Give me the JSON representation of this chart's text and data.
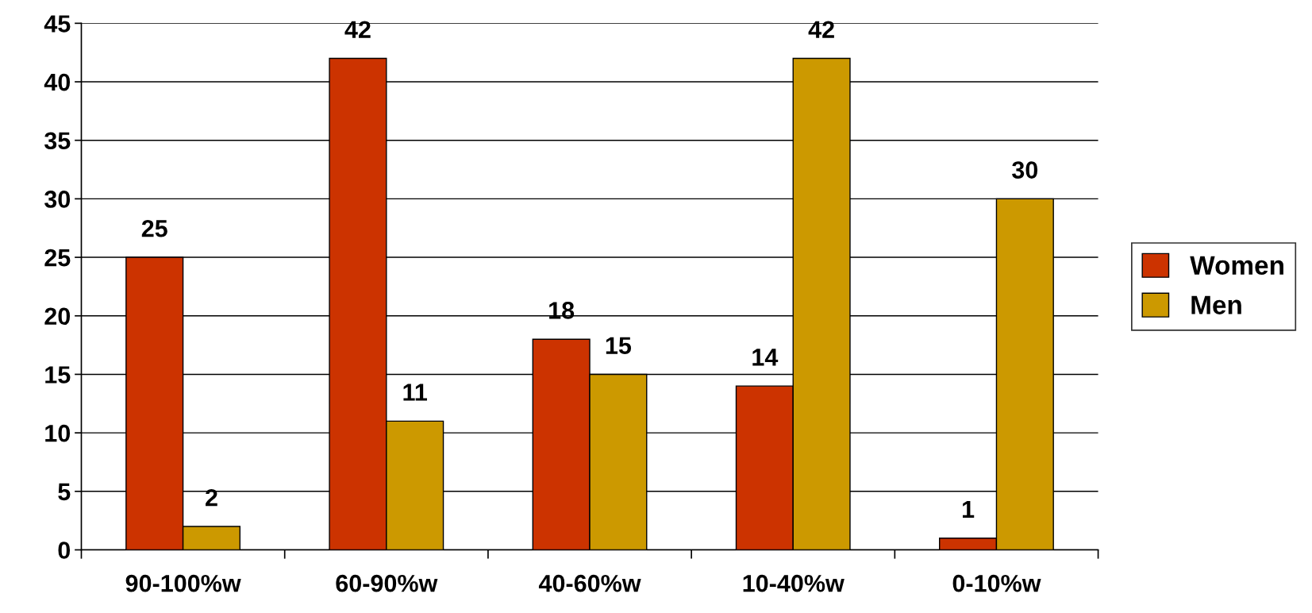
{
  "chart_data": {
    "type": "bar",
    "categories": [
      "90-100%w",
      "60-90%w",
      "40-60%w",
      "10-40%w",
      "0-10%w"
    ],
    "series": [
      {
        "name": "Women",
        "color": "#cc3300",
        "values": [
          25,
          42,
          18,
          14,
          1
        ]
      },
      {
        "name": "Men",
        "color": "#cc9900",
        "values": [
          2,
          11,
          15,
          42,
          30
        ]
      }
    ],
    "ylim": [
      0,
      45
    ],
    "yticks": [
      0,
      5,
      10,
      15,
      20,
      25,
      30,
      35,
      40,
      45
    ],
    "grid": "y",
    "legend": "right",
    "data_labels": true
  }
}
